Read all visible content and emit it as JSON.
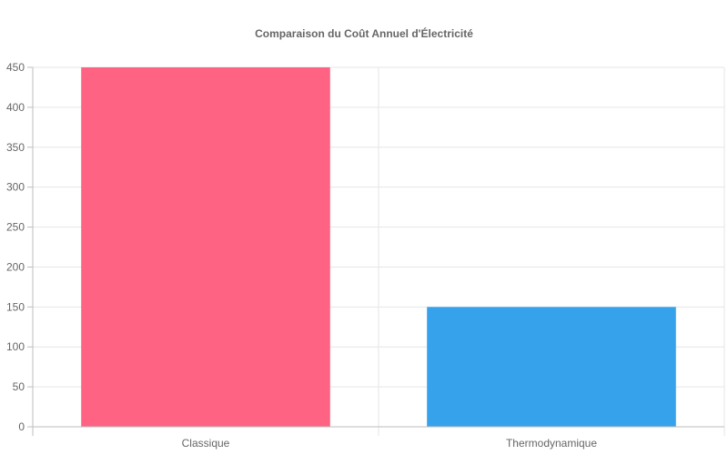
{
  "chart_data": {
    "type": "bar",
    "title": "Comparaison du Coût Annuel d'Électricité",
    "categories": [
      "Classique",
      "Thermodynamique"
    ],
    "values": [
      450,
      150
    ],
    "colors": [
      "#ff6384",
      "#36a2eb"
    ],
    "ylim": [
      0,
      450
    ],
    "yticks": [
      "0",
      "50",
      "100",
      "150",
      "200",
      "250",
      "300",
      "350",
      "400",
      "450"
    ],
    "grid": true,
    "legend": "none"
  }
}
